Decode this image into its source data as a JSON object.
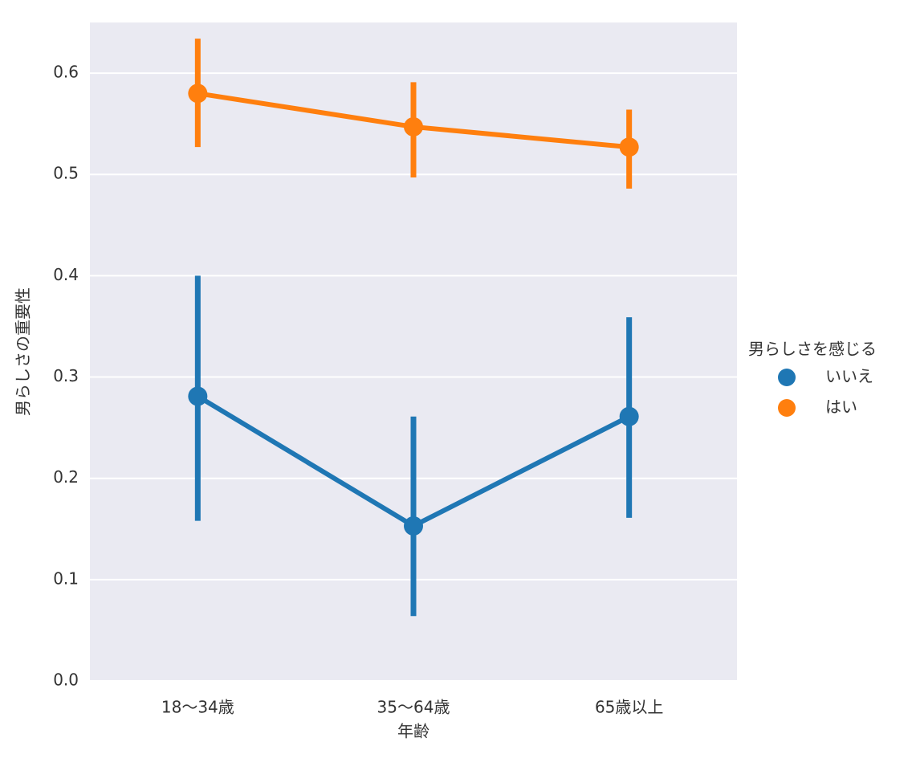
{
  "chart_data": {
    "type": "point",
    "x_label": "年齢",
    "y_label": "男らしさの重要性",
    "categories": [
      "18〜34歳",
      "35〜64歳",
      "65歳以上"
    ],
    "series": [
      {
        "name": "いいえ",
        "color": "#1f77b4",
        "values": [
          0.281,
          0.153,
          0.261
        ],
        "ci_low": [
          0.158,
          0.064,
          0.161
        ],
        "ci_high": [
          0.4,
          0.261,
          0.359
        ]
      },
      {
        "name": "はい",
        "color": "#ff7f0e",
        "values": [
          0.58,
          0.547,
          0.527
        ],
        "ci_low": [
          0.527,
          0.497,
          0.486
        ],
        "ci_high": [
          0.634,
          0.591,
          0.564
        ]
      }
    ],
    "ylim": [
      0,
      0.65
    ],
    "yticks": [
      0.0,
      0.1,
      0.2,
      0.3,
      0.4,
      0.5,
      0.6
    ],
    "grid": true,
    "legend_title": "男らしさを感じる",
    "legend_position": "right"
  }
}
